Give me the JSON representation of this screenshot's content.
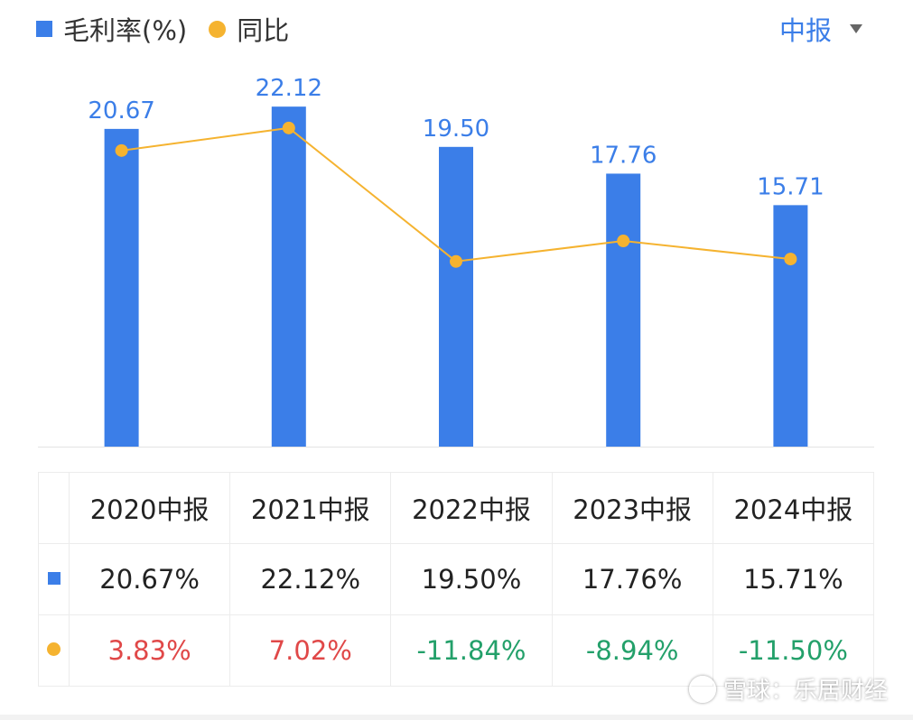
{
  "legend": {
    "bar_label": "毛利率(%)",
    "line_label": "同比"
  },
  "period_selector": {
    "label": "中报"
  },
  "colors": {
    "bar": "#3b7ee8",
    "line": "#f5b330",
    "positive": "#e04848",
    "negative": "#23a06a"
  },
  "chart_data": {
    "type": "bar",
    "categories": [
      "2020中报",
      "2021中报",
      "2022中报",
      "2023中报",
      "2024中报"
    ],
    "series": [
      {
        "name": "毛利率(%)",
        "type": "bar",
        "values": [
          20.67,
          22.12,
          19.5,
          17.76,
          15.71
        ],
        "value_labels": [
          "20.67",
          "22.12",
          "19.50",
          "17.76",
          "15.71"
        ]
      },
      {
        "name": "同比",
        "type": "line",
        "values": [
          3.83,
          7.02,
          -11.84,
          -8.94,
          -11.5
        ]
      }
    ],
    "legend_position": "top-left",
    "grid": false
  },
  "table": {
    "headers": [
      "2020中报",
      "2021中报",
      "2022中报",
      "2023中报",
      "2024中报"
    ],
    "row_margin": [
      "20.67%",
      "22.12%",
      "19.50%",
      "17.76%",
      "15.71%"
    ],
    "row_yoy": [
      "3.83%",
      "7.02%",
      "-11.84%",
      "-8.94%",
      "-11.50%"
    ]
  },
  "watermark": {
    "text": "雪球：乐居财经"
  }
}
